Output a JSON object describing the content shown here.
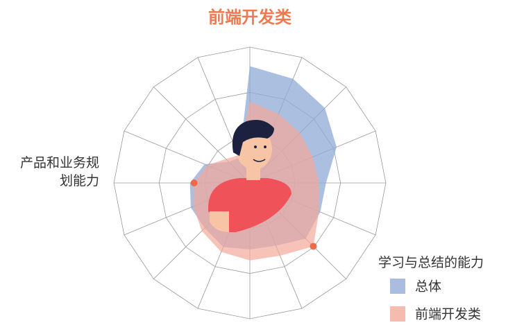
{
  "chart_data": {
    "type": "radar",
    "title": "前端开发类",
    "categories": [
      null,
      null,
      null,
      null,
      null,
      null,
      "学习与总结的能力",
      null,
      null,
      null,
      null,
      null,
      "产品和业务规划能力",
      null,
      null,
      null
    ],
    "rlim": [
      0,
      100
    ],
    "series": [
      {
        "name": "总体",
        "color": "#8fa9d6",
        "values": [
          86,
          83,
          78,
          69,
          56,
          56,
          58,
          50,
          49,
          51,
          47,
          47,
          44,
          36,
          22,
          20
        ]
      },
      {
        "name": "前端开发类",
        "color": "#f4a899",
        "values": [
          60,
          55,
          52,
          50,
          51,
          55,
          66,
          58,
          57,
          55,
          50,
          45,
          41,
          34,
          25,
          22
        ]
      }
    ]
  }
}
